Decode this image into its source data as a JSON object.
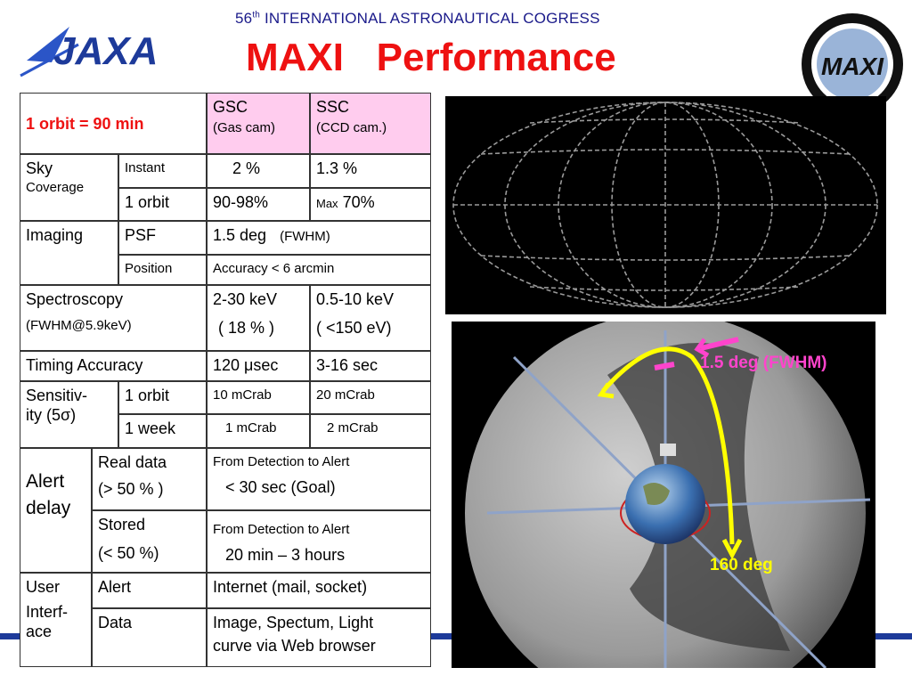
{
  "header": {
    "conference_number": "56",
    "conference_suffix": "th",
    "conference_rest": " INTERNATIONAL ASTRONAUTICAL COGRESS",
    "title": "MAXI   Performance",
    "jaxa_logo": "JAXA",
    "maxi_logo": "MAXI"
  },
  "table": {
    "orbit": "1 orbit = 90 min",
    "gsc": "GSC",
    "gsc_sub": "(Gas cam)",
    "ssc": "SSC",
    "ssc_sub": "(CCD cam.)",
    "sky": "Sky",
    "coverage": "Coverage",
    "instant": "Instant",
    "instant_gsc": "2 %",
    "instant_ssc": "1.3 %",
    "one_orbit": "1 orbit",
    "orbit_gsc": "90-98%",
    "orbit_ssc_max": "Max",
    "orbit_ssc": "70%",
    "imaging": "Imaging",
    "psf": "PSF",
    "psf_val": "1.5 deg",
    "psf_fwhm": "(FWHM)",
    "position": "Position",
    "position_val": "Accuracy < 6  arcmin",
    "spectroscopy": "Spectroscopy",
    "spectroscopy_sub": "(FWHM@5.9keV)",
    "spec_gsc": "2-30 keV",
    "spec_gsc_sub": "( 18 % )",
    "spec_ssc": "0.5-10 keV",
    "spec_ssc_sub": "( <150 eV)",
    "timing": "Timing Accuracy",
    "timing_gsc": "120 μsec",
    "timing_ssc": "3-16 sec",
    "sensitivity": "Sensitiv-",
    "sensitivity2": "ity  (5σ)",
    "sens_orbit": "1 orbit",
    "sens_orbit_gsc": "10 mCrab",
    "sens_orbit_ssc": "20 mCrab",
    "sens_week": "1 week",
    "sens_week_gsc": "1 mCrab",
    "sens_week_ssc": "2  mCrab",
    "alert": "Alert",
    "delay": "delay",
    "real_data": "Real data",
    "real_data_sub": "(> 50 % )",
    "real_from": "From Detection  to  Alert",
    "real_val": "< 30 sec  (Goal)",
    "stored": "Stored",
    "stored_sub": "(< 50 %)",
    "stored_from": "From Detection  to  Alert",
    "stored_val": "20 min – 3 hours",
    "user": "User",
    "interf": "Interf-",
    "ace": "ace",
    "alert_row": "Alert",
    "alert_val": "Internet  (mail, socket)",
    "data_row": "Data",
    "data_val1": "Image, Spectum, Light",
    "data_val2": "curve via Web browser"
  },
  "figure": {
    "fwhm_label": "1.5 deg (FWHM)",
    "deg_label": "160 deg"
  },
  "colors": {
    "title_red": "#ee1111",
    "header_pink": "#ffccee",
    "jaxa_blue": "#1d3a9a",
    "arrow_yellow": "#ffff00",
    "arrow_pink": "#ff44cc"
  }
}
